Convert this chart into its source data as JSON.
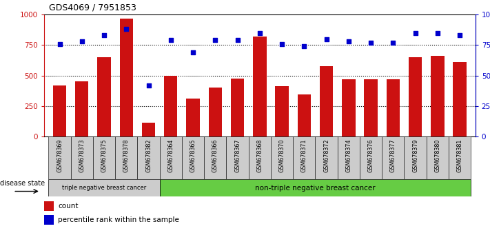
{
  "title": "GDS4069 / 7951853",
  "samples": [
    "GSM678369",
    "GSM678373",
    "GSM678375",
    "GSM678378",
    "GSM678382",
    "GSM678364",
    "GSM678365",
    "GSM678366",
    "GSM678367",
    "GSM678368",
    "GSM678370",
    "GSM678371",
    "GSM678372",
    "GSM678374",
    "GSM678376",
    "GSM678377",
    "GSM678379",
    "GSM678380",
    "GSM678381"
  ],
  "counts": [
    420,
    455,
    650,
    970,
    115,
    500,
    310,
    405,
    475,
    820,
    415,
    345,
    575,
    470,
    470,
    470,
    650,
    665,
    610
  ],
  "percentiles": [
    76,
    78,
    83,
    88,
    42,
    79,
    69,
    79,
    79,
    85,
    76,
    74,
    80,
    78,
    77,
    77,
    85,
    85,
    83
  ],
  "group1_label": "triple negative breast cancer",
  "group1_count": 5,
  "group2_label": "non-triple negative breast cancer",
  "group2_count": 14,
  "disease_state_label": "disease state",
  "legend_count": "count",
  "legend_pct": "percentile rank within the sample",
  "ylim_left": [
    0,
    1000
  ],
  "ylim_right": [
    0,
    100
  ],
  "yticks_left": [
    0,
    250,
    500,
    750,
    1000
  ],
  "yticks_right": [
    0,
    25,
    50,
    75,
    100
  ],
  "bar_color": "#cc1111",
  "dot_color": "#0000cc",
  "group1_bg": "#cccccc",
  "group2_bg": "#66cc44",
  "xtick_bg": "#cccccc"
}
